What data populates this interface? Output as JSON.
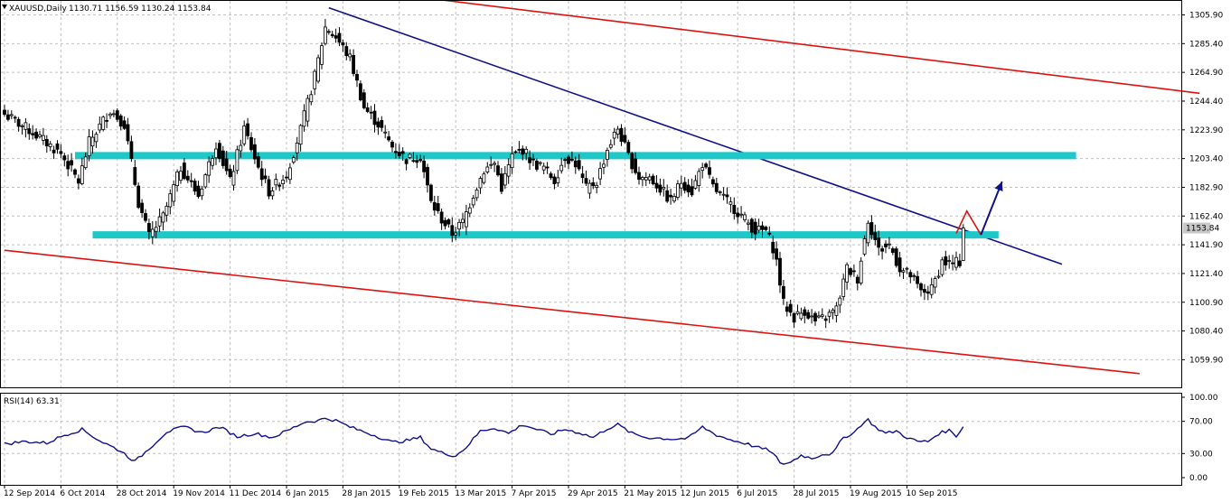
{
  "header": {
    "symbol": "XAUUSD,Daily",
    "ohlc": "1130.71 1156.59 1130.24 1153.84"
  },
  "rsi_header": "RSI(14) 63.31",
  "price_tag": "1153.84",
  "colors": {
    "candle": "#000000",
    "channel": "#e01010",
    "trendline": "#10108c",
    "support_resistance": "#1ec8c8",
    "rsi_line": "#10108c",
    "grid": "#c0c0c0",
    "price_tag_bg": "#c8c8c8"
  },
  "chart_data": [
    {
      "type": "candlestick",
      "title": "XAUUSD,Daily",
      "y_ticks": [
        "1305.90",
        "1285.40",
        "1264.90",
        "1244.40",
        "1223.90",
        "1203.40",
        "1182.90",
        "1162.40",
        "1141.90",
        "1121.40",
        "1100.90",
        "1080.40",
        "1059.90"
      ],
      "ylim": [
        1045.0,
        1318.0
      ],
      "x_ticks": [
        "12 Sep 2014",
        "6 Oct 2014",
        "28 Oct 2014",
        "19 Nov 2014",
        "11 Dec 2014",
        "6 Jan 2015",
        "28 Jan 2015",
        "19 Feb 2015",
        "13 Mar 2015",
        "7 Apr 2015",
        "29 Apr 2015",
        "21 May 2015",
        "12 Jun 2015",
        "6 Jul 2015",
        "28 Jul 2015",
        "19 Aug 2015",
        "10 Sep 2015"
      ],
      "grid": true,
      "close_anchors": [
        {
          "bar": 0,
          "price": 1235
        },
        {
          "bar": 8,
          "price": 1222
        },
        {
          "bar": 16,
          "price": 1207
        },
        {
          "bar": 21,
          "price": 1187
        },
        {
          "bar": 24,
          "price": 1215
        },
        {
          "bar": 30,
          "price": 1238
        },
        {
          "bar": 34,
          "price": 1228
        },
        {
          "bar": 38,
          "price": 1172
        },
        {
          "bar": 41,
          "price": 1148
        },
        {
          "bar": 45,
          "price": 1162
        },
        {
          "bar": 50,
          "price": 1197
        },
        {
          "bar": 55,
          "price": 1177
        },
        {
          "bar": 60,
          "price": 1214
        },
        {
          "bar": 64,
          "price": 1187
        },
        {
          "bar": 68,
          "price": 1225
        },
        {
          "bar": 72,
          "price": 1197
        },
        {
          "bar": 75,
          "price": 1180
        },
        {
          "bar": 80,
          "price": 1192
        },
        {
          "bar": 84,
          "price": 1224
        },
        {
          "bar": 88,
          "price": 1262
        },
        {
          "bar": 91,
          "price": 1297
        },
        {
          "bar": 94,
          "price": 1290
        },
        {
          "bar": 98,
          "price": 1275
        },
        {
          "bar": 102,
          "price": 1240
        },
        {
          "bar": 106,
          "price": 1228
        },
        {
          "bar": 110,
          "price": 1212
        },
        {
          "bar": 114,
          "price": 1203
        },
        {
          "bar": 118,
          "price": 1205
        },
        {
          "bar": 121,
          "price": 1172
        },
        {
          "bar": 124,
          "price": 1160
        },
        {
          "bar": 127,
          "price": 1150
        },
        {
          "bar": 130,
          "price": 1158
        },
        {
          "bar": 133,
          "price": 1178
        },
        {
          "bar": 136,
          "price": 1195
        },
        {
          "bar": 139,
          "price": 1200
        },
        {
          "bar": 141,
          "price": 1183
        },
        {
          "bar": 144,
          "price": 1205
        },
        {
          "bar": 147,
          "price": 1210
        },
        {
          "bar": 150,
          "price": 1200
        },
        {
          "bar": 153,
          "price": 1197
        },
        {
          "bar": 156,
          "price": 1188
        },
        {
          "bar": 159,
          "price": 1205
        },
        {
          "bar": 162,
          "price": 1200
        },
        {
          "bar": 165,
          "price": 1182
        },
        {
          "bar": 168,
          "price": 1187
        },
        {
          "bar": 171,
          "price": 1210
        },
        {
          "bar": 174,
          "price": 1225
        },
        {
          "bar": 177,
          "price": 1205
        },
        {
          "bar": 180,
          "price": 1190
        },
        {
          "bar": 183,
          "price": 1190
        },
        {
          "bar": 186,
          "price": 1182
        },
        {
          "bar": 189,
          "price": 1173
        },
        {
          "bar": 192,
          "price": 1187
        },
        {
          "bar": 195,
          "price": 1180
        },
        {
          "bar": 198,
          "price": 1200
        },
        {
          "bar": 201,
          "price": 1183
        },
        {
          "bar": 204,
          "price": 1175
        },
        {
          "bar": 207,
          "price": 1168
        },
        {
          "bar": 210,
          "price": 1160
        },
        {
          "bar": 213,
          "price": 1152
        },
        {
          "bar": 216,
          "price": 1152
        },
        {
          "bar": 218,
          "price": 1140
        },
        {
          "bar": 219,
          "price": 1130
        },
        {
          "bar": 221,
          "price": 1100
        },
        {
          "bar": 224,
          "price": 1090
        },
        {
          "bar": 227,
          "price": 1095
        },
        {
          "bar": 230,
          "price": 1087
        },
        {
          "bar": 233,
          "price": 1090
        },
        {
          "bar": 236,
          "price": 1096
        },
        {
          "bar": 239,
          "price": 1125
        },
        {
          "bar": 242,
          "price": 1118
        },
        {
          "bar": 245,
          "price": 1160
        },
        {
          "bar": 248,
          "price": 1138
        },
        {
          "bar": 251,
          "price": 1142
        },
        {
          "bar": 254,
          "price": 1125
        },
        {
          "bar": 257,
          "price": 1120
        },
        {
          "bar": 260,
          "price": 1108
        },
        {
          "bar": 263,
          "price": 1110
        },
        {
          "bar": 266,
          "price": 1130
        },
        {
          "bar": 269,
          "price": 1128
        },
        {
          "bar": 271,
          "price": 1130
        },
        {
          "bar": 272,
          "price": 1153.84
        }
      ],
      "lines": [
        {
          "name": "channel-top",
          "from": {
            "bar": 113,
            "price": 1320
          },
          "to": {
            "bar": 339,
            "price": 1250
          }
        },
        {
          "name": "channel-bottom",
          "from": {
            "bar": 0,
            "price": 1138
          },
          "to": {
            "bar": 322,
            "price": 1050
          }
        },
        {
          "name": "trendline",
          "from": {
            "bar": 92,
            "price": 1311
          },
          "to": {
            "bar": 300,
            "price": 1128
          }
        },
        {
          "name": "resistance",
          "from": {
            "bar": 20,
            "price": 1205.5
          },
          "to": {
            "bar": 304,
            "price": 1205.5
          }
        },
        {
          "name": "support",
          "from": {
            "bar": 25,
            "price": 1149
          },
          "to": {
            "bar": 282,
            "price": 1149
          }
        }
      ],
      "projection": {
        "red_path": [
          {
            "bar": 270,
            "price": 1150
          },
          {
            "bar": 273,
            "price": 1166
          },
          {
            "bar": 277,
            "price": 1149
          }
        ],
        "blue_arrow": [
          {
            "bar": 277,
            "price": 1149
          },
          {
            "bar": 283,
            "price": 1187
          }
        ]
      }
    },
    {
      "type": "line",
      "title": "RSI(14) 63.31",
      "y_ticks": [
        "100.00",
        "70.00",
        "30.00",
        "0.00"
      ],
      "ylim": [
        0,
        100
      ],
      "levels": [
        70,
        30
      ],
      "anchors": [
        {
          "bar": 0,
          "value": 42
        },
        {
          "bar": 6,
          "value": 45
        },
        {
          "bar": 12,
          "value": 43
        },
        {
          "bar": 17,
          "value": 53
        },
        {
          "bar": 22,
          "value": 60
        },
        {
          "bar": 27,
          "value": 46
        },
        {
          "bar": 33,
          "value": 33
        },
        {
          "bar": 37,
          "value": 20
        },
        {
          "bar": 40,
          "value": 32
        },
        {
          "bar": 46,
          "value": 57
        },
        {
          "bar": 51,
          "value": 63
        },
        {
          "bar": 56,
          "value": 56
        },
        {
          "bar": 61,
          "value": 63
        },
        {
          "bar": 66,
          "value": 51
        },
        {
          "bar": 71,
          "value": 55
        },
        {
          "bar": 76,
          "value": 50
        },
        {
          "bar": 81,
          "value": 60
        },
        {
          "bar": 85,
          "value": 69
        },
        {
          "bar": 89,
          "value": 71
        },
        {
          "bar": 91,
          "value": 74
        },
        {
          "bar": 94,
          "value": 71
        },
        {
          "bar": 98,
          "value": 63
        },
        {
          "bar": 102,
          "value": 57
        },
        {
          "bar": 106,
          "value": 51
        },
        {
          "bar": 110,
          "value": 44
        },
        {
          "bar": 114,
          "value": 46
        },
        {
          "bar": 118,
          "value": 50
        },
        {
          "bar": 121,
          "value": 36
        },
        {
          "bar": 124,
          "value": 31
        },
        {
          "bar": 128,
          "value": 27
        },
        {
          "bar": 131,
          "value": 38
        },
        {
          "bar": 135,
          "value": 58
        },
        {
          "bar": 139,
          "value": 62
        },
        {
          "bar": 143,
          "value": 55
        },
        {
          "bar": 147,
          "value": 66
        },
        {
          "bar": 151,
          "value": 60
        },
        {
          "bar": 155,
          "value": 54
        },
        {
          "bar": 159,
          "value": 60
        },
        {
          "bar": 163,
          "value": 56
        },
        {
          "bar": 167,
          "value": 50
        },
        {
          "bar": 171,
          "value": 61
        },
        {
          "bar": 174,
          "value": 66
        },
        {
          "bar": 178,
          "value": 55
        },
        {
          "bar": 182,
          "value": 50
        },
        {
          "bar": 186,
          "value": 49
        },
        {
          "bar": 190,
          "value": 48
        },
        {
          "bar": 194,
          "value": 49
        },
        {
          "bar": 198,
          "value": 63
        },
        {
          "bar": 202,
          "value": 53
        },
        {
          "bar": 206,
          "value": 47
        },
        {
          "bar": 210,
          "value": 43
        },
        {
          "bar": 214,
          "value": 37
        },
        {
          "bar": 217,
          "value": 34
        },
        {
          "bar": 219,
          "value": 25
        },
        {
          "bar": 220,
          "value": 17
        },
        {
          "bar": 223,
          "value": 19
        },
        {
          "bar": 226,
          "value": 28
        },
        {
          "bar": 229,
          "value": 24
        },
        {
          "bar": 232,
          "value": 29
        },
        {
          "bar": 235,
          "value": 30
        },
        {
          "bar": 238,
          "value": 50
        },
        {
          "bar": 241,
          "value": 56
        },
        {
          "bar": 243,
          "value": 66
        },
        {
          "bar": 245,
          "value": 72
        },
        {
          "bar": 247,
          "value": 63
        },
        {
          "bar": 250,
          "value": 55
        },
        {
          "bar": 253,
          "value": 58
        },
        {
          "bar": 256,
          "value": 50
        },
        {
          "bar": 259,
          "value": 45
        },
        {
          "bar": 262,
          "value": 45
        },
        {
          "bar": 265,
          "value": 55
        },
        {
          "bar": 268,
          "value": 59
        },
        {
          "bar": 270,
          "value": 52
        },
        {
          "bar": 272,
          "value": 63.31
        }
      ]
    }
  ]
}
